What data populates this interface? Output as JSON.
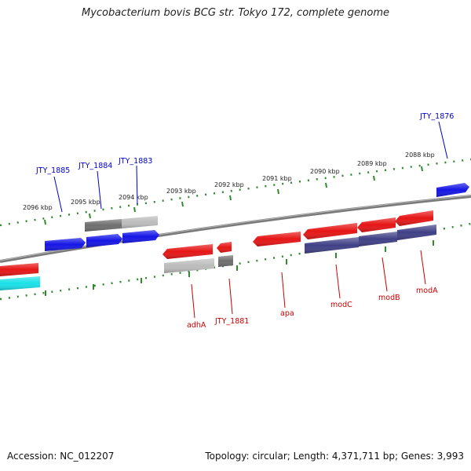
{
  "title": "Mycobacterium bovis BCG str. Tokyo 172, complete genome",
  "footer": {
    "accession": "Accession: NC_012207",
    "summary": "Topology: circular; Length: 4,371,711 bp; Genes: 3,993"
  },
  "colors": {
    "background": "#ffffff",
    "backbone": "#7a7a7a",
    "tick": "#2e8b2e",
    "forward_gene": "#1515e6",
    "reverse_gene": "#e61515",
    "gray_gene_dark": "#6e6e6e",
    "gray_gene_light": "#bcbcbc",
    "cyan_gene": "#19e1e8",
    "navy_gene": "#3f3f86",
    "forward_label": "#0000cc",
    "reverse_label": "#cc0000"
  },
  "kbp_labels": [
    "2096 kbp",
    "2095 kbp",
    "2094 kbp",
    "2093 kbp",
    "2092 kbp",
    "2091 kbp",
    "2090 kbp",
    "2089 kbp",
    "2088 kbp"
  ],
  "gene_labels_top": [
    "JTY_1885",
    "JTY_1884",
    "JTY_1883",
    "JTY_1876"
  ],
  "gene_labels_bottom": [
    "adhA",
    "JTY_1881",
    "apa",
    "modC",
    "modB",
    "modA"
  ]
}
